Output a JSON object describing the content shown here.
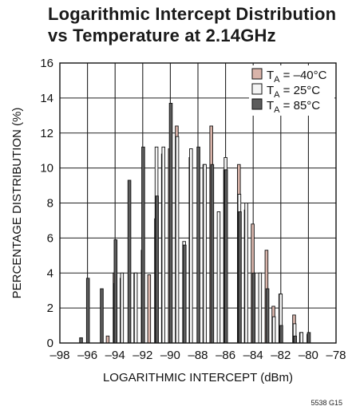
{
  "title_lines": [
    "Logarithmic Intercept Distribution",
    "vs Temperature at 2.14GHz"
  ],
  "figure_id": "5538 G15",
  "chart_data": {
    "type": "bar",
    "xlabel": "LOGARITHMIC INTERCEPT (dBm)",
    "ylabel": "PERCENTAGE DISTRIBUTION (%)",
    "xlim": [
      -98,
      -78
    ],
    "ylim": [
      0,
      16
    ],
    "xticks": [
      -98,
      -96,
      -94,
      -92,
      -90,
      -88,
      -86,
      -84,
      -82,
      -80,
      -78
    ],
    "xtick_labels": [
      "–98",
      "–96",
      "–94",
      "–92",
      "–90",
      "–88",
      "–86",
      "–84",
      "–82",
      "–80",
      "–78"
    ],
    "yticks": [
      0,
      2,
      4,
      6,
      8,
      10,
      12,
      14,
      16
    ],
    "grid": true,
    "legend_position": "top-right",
    "bin_width": 0.5,
    "series": [
      {
        "name": "T_A = –40°C",
        "label_main": "T",
        "label_sub": "A",
        "label_rest": " = –40°C",
        "color": "#d9b4aa",
        "points": [
          [
            -94.5,
            0.4
          ],
          [
            -94.0,
            4.0
          ],
          [
            -93.5,
            3.7
          ],
          [
            -92.5,
            4.0
          ],
          [
            -91.5,
            3.9
          ],
          [
            -91.0,
            7.1
          ],
          [
            -90.5,
            10.8
          ],
          [
            -90.0,
            11.1
          ],
          [
            -89.5,
            12.4
          ],
          [
            -88.5,
            10.6
          ],
          [
            -87.5,
            10.2
          ],
          [
            -87.0,
            12.4
          ],
          [
            -86.0,
            9.9
          ],
          [
            -85.0,
            10.2
          ],
          [
            -84.5,
            7.6
          ],
          [
            -84.0,
            6.8
          ],
          [
            -83.0,
            5.3
          ],
          [
            -82.5,
            2.1
          ],
          [
            -82.0,
            2.8
          ],
          [
            -81.0,
            1.6
          ],
          [
            -80.5,
            0.6
          ]
        ]
      },
      {
        "name": "T_A = 25°C",
        "label_main": "T",
        "label_sub": "A",
        "label_rest": " = 25°C",
        "color": "#f4f4f4",
        "points": [
          [
            -94.0,
            3.4
          ],
          [
            -93.5,
            4.0
          ],
          [
            -92.5,
            4.0
          ],
          [
            -92.0,
            5.3
          ],
          [
            -91.0,
            11.2
          ],
          [
            -90.5,
            11.2
          ],
          [
            -89.5,
            11.8
          ],
          [
            -89.0,
            5.8
          ],
          [
            -88.5,
            11.1
          ],
          [
            -87.5,
            10.2
          ],
          [
            -86.5,
            7.5
          ],
          [
            -86.0,
            10.6
          ],
          [
            -85.0,
            8.5
          ],
          [
            -84.5,
            8.0
          ],
          [
            -83.5,
            4.0
          ],
          [
            -82.5,
            1.5
          ],
          [
            -82.0,
            2.8
          ],
          [
            -81.0,
            1.1
          ],
          [
            -80.5,
            0.6
          ],
          [
            -80.0,
            0.5
          ]
        ]
      },
      {
        "name": "T_A = 85°C",
        "label_main": "T",
        "label_sub": "A",
        "label_rest": " = 85°C",
        "color": "#5c5c5c",
        "points": [
          [
            -96.5,
            0.3
          ],
          [
            -96.0,
            3.7
          ],
          [
            -95.0,
            3.1
          ],
          [
            -94.0,
            5.9
          ],
          [
            -93.0,
            9.3
          ],
          [
            -92.0,
            11.2
          ],
          [
            -91.0,
            8.4
          ],
          [
            -90.0,
            13.7
          ],
          [
            -89.0,
            5.6
          ],
          [
            -88.0,
            11.2
          ],
          [
            -87.0,
            10.2
          ],
          [
            -86.0,
            9.9
          ],
          [
            -85.0,
            7.5
          ],
          [
            -84.0,
            4.0
          ],
          [
            -83.0,
            3.1
          ],
          [
            -82.0,
            1.0
          ],
          [
            -81.0,
            0.4
          ],
          [
            -80.0,
            0.6
          ]
        ]
      }
    ]
  }
}
